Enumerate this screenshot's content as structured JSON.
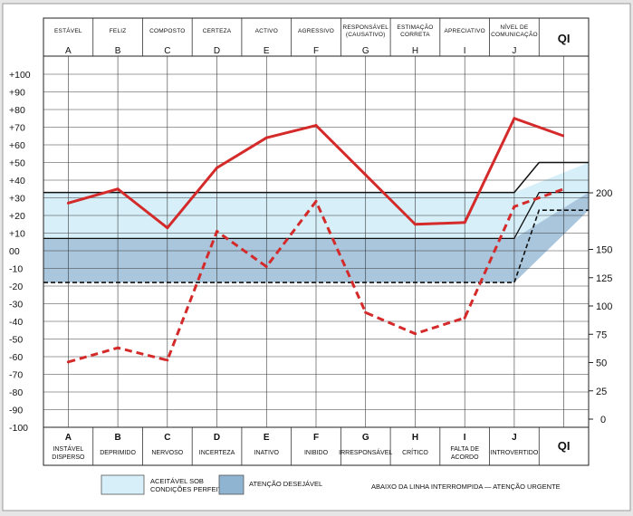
{
  "chart_data": {
    "type": "line",
    "categories": [
      "A",
      "B",
      "C",
      "D",
      "E",
      "F",
      "G",
      "H",
      "I",
      "J"
    ],
    "top_labels": [
      [
        "ESTÁVEL"
      ],
      [
        "FELIZ"
      ],
      [
        "COMPOSTO"
      ],
      [
        "CERTEZA"
      ],
      [
        "ACTIVO"
      ],
      [
        "AGRESSIVO"
      ],
      [
        "RESPONSÁVEL",
        "(CAUSATIVO)"
      ],
      [
        "ESTIMAÇÃO",
        "CORRETA"
      ],
      [
        "APRECIATIVO"
      ],
      [
        "NÍVEL DE",
        "COMUNICAÇÃO"
      ]
    ],
    "bottom_labels": [
      [
        "INSTÁVEL",
        "DISPERSO"
      ],
      [
        "DEPRIMIDO"
      ],
      [
        "NERVOSO"
      ],
      [
        "INCERTEZA"
      ],
      [
        "INATIVO"
      ],
      [
        "INIBIDO"
      ],
      [
        "IRRESPONSÁVEL"
      ],
      [
        "CRÍTICO"
      ],
      [
        "FALTA DE",
        "ACORDO"
      ],
      [
        "INTROVERTIDO"
      ]
    ],
    "qi_label": "QI",
    "y_ticks": [
      "+100",
      "+90",
      "+80",
      "+70",
      "+60",
      "+50",
      "+40",
      "+30",
      "+20",
      "+10",
      "00",
      "-10",
      "-20",
      "-30",
      "-40",
      "-50",
      "-60",
      "-70",
      "-80",
      "-90",
      "-100"
    ],
    "ylim": [
      -100,
      100
    ],
    "qi_ticks": [
      200,
      150,
      125,
      100,
      75,
      50,
      25,
      0
    ],
    "series": [
      {
        "style": "solid",
        "color": "#d42a2a",
        "values": [
          27,
          35,
          13,
          47,
          64,
          71,
          43,
          15,
          16,
          75
        ],
        "qi_end": 65
      },
      {
        "style": "dashed",
        "color": "#d42a2a",
        "values": [
          -63,
          -55,
          -62,
          11,
          -9,
          28,
          -35,
          -47,
          -38,
          25
        ],
        "qi_end": 35
      }
    ],
    "bands": {
      "acceptable_top": 33,
      "desirable_top": 7,
      "urgent_line": -18,
      "acceptable_top_qi": 50,
      "desirable_top_qi": 33,
      "urgent_line_qi": 23,
      "acceptable_color": "#d6eff9",
      "desirable_color": "#8fb4d1",
      "desirable_light": "#a9c6dd"
    },
    "legend": {
      "acceptable": [
        "ACEITÁVEL SOB",
        "CONDIÇÕES PERFEITAS"
      ],
      "desirable": "ATENÇÃO DESEJÁVEL",
      "urgent": "ABAIXO DA LINHA INTERROMPIDA — ATENÇÃO URGENTE"
    },
    "grid": true
  }
}
